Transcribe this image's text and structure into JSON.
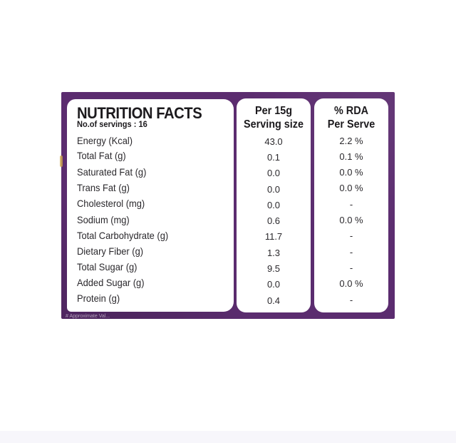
{
  "label": {
    "title": "NUTRITION FACTS",
    "servings": "No.of servings : 16",
    "serving_header_line1": "Per 15g",
    "serving_header_line2": "Serving size",
    "rda_header_line1": "% RDA",
    "rda_header_line2": "Per Serve",
    "footnote": "# Approximate Val...",
    "rows": [
      {
        "name": "Energy (Kcal)",
        "serving": "43.0",
        "rda": "2.2 %"
      },
      {
        "name": "Total Fat (g)",
        "serving": "0.1",
        "rda": "0.1 %"
      },
      {
        "name": "Saturated Fat (g)",
        "serving": "0.0",
        "rda": "0.0 %"
      },
      {
        "name": "Trans Fat (g)",
        "serving": "0.0",
        "rda": "0.0 %"
      },
      {
        "name": "Cholesterol (mg)",
        "serving": "0.0",
        "rda": "-"
      },
      {
        "name": "Sodium (mg)",
        "serving": "0.6",
        "rda": "0.0 %"
      },
      {
        "name": "Total Carbohydrate (g)",
        "serving": "11.7",
        "rda": "-"
      },
      {
        "name": "Dietary Fiber (g)",
        "serving": "1.3",
        "rda": "-"
      },
      {
        "name": "Total Sugar (g)",
        "serving": "9.5",
        "rda": "-"
      },
      {
        "name": "Added Sugar (g)",
        "serving": "0.0",
        "rda": "0.0 %"
      },
      {
        "name": "Protein (g)",
        "serving": "0.4",
        "rda": "-"
      }
    ]
  },
  "colors": {
    "panel": "#5b2c6f",
    "card": "#ffffff",
    "text": "#1c1a1d"
  }
}
